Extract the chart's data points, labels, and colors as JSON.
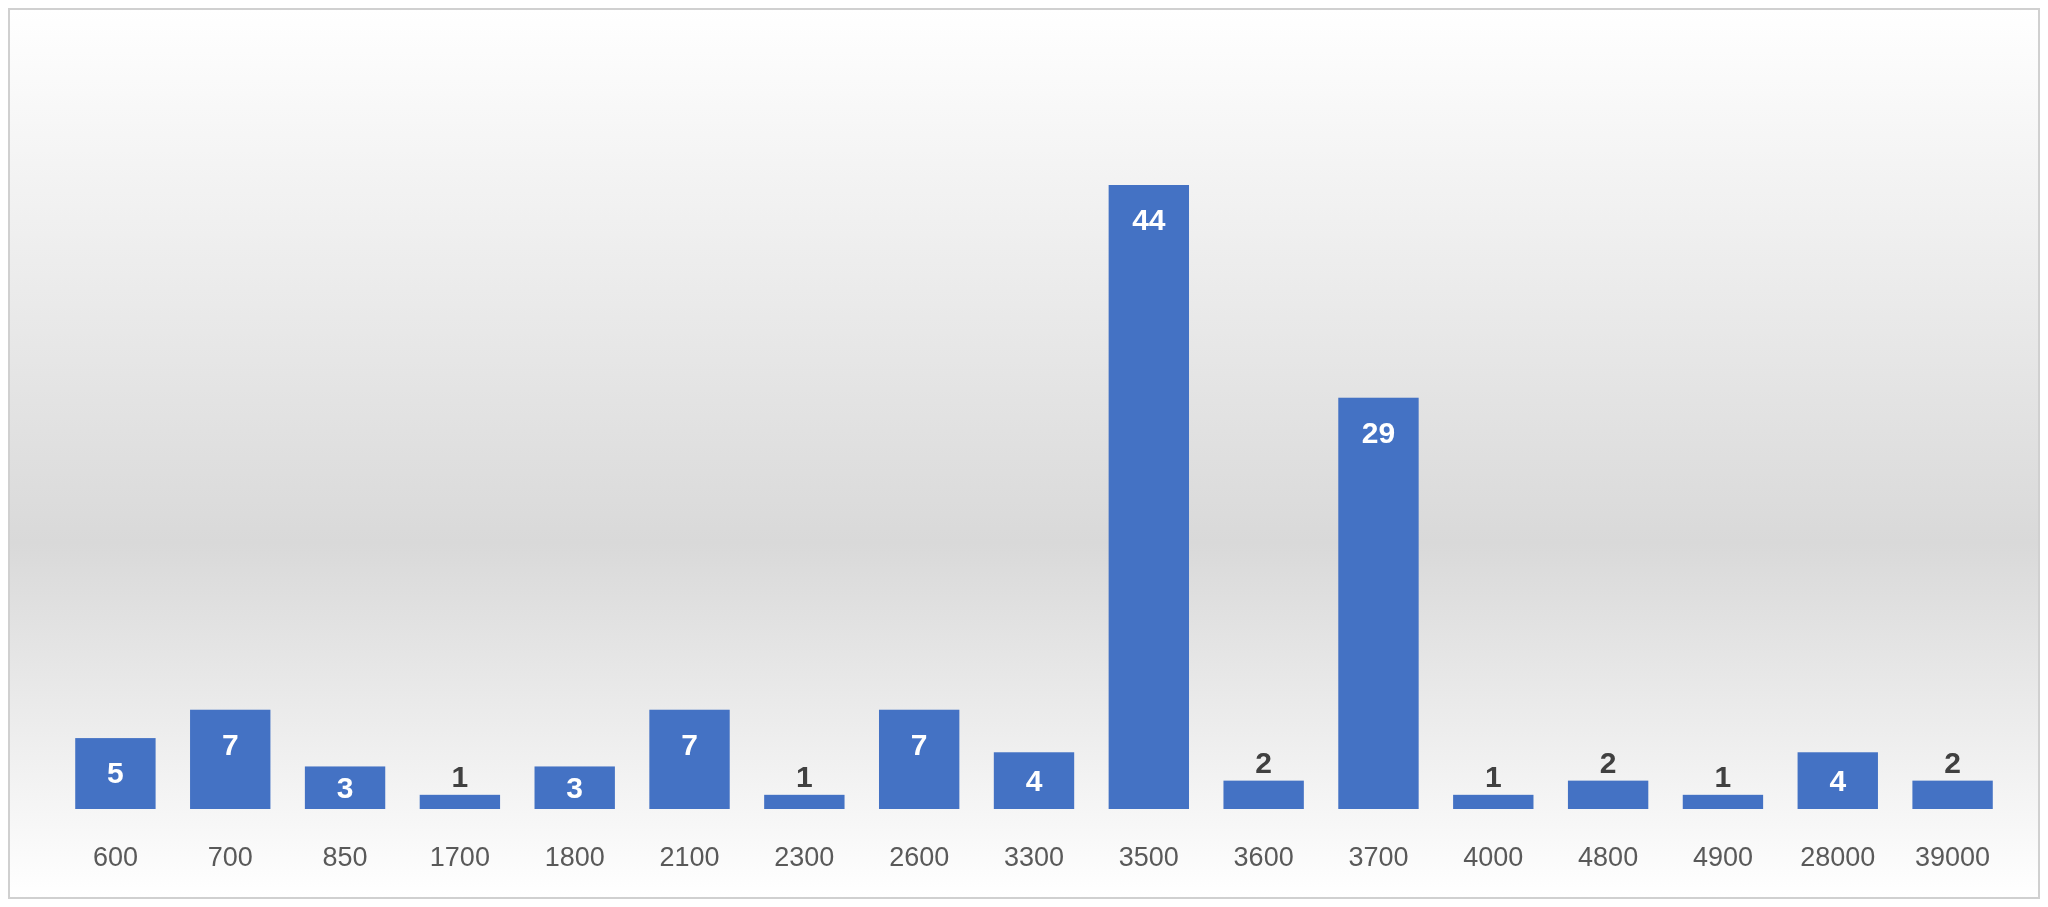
{
  "chart_data": {
    "type": "bar",
    "categories": [
      "600",
      "700",
      "850",
      "1700",
      "1800",
      "2100",
      "2300",
      "2600",
      "3300",
      "3500",
      "3600",
      "3700",
      "4000",
      "4800",
      "4900",
      "28000",
      "39000"
    ],
    "values": [
      5,
      7,
      3,
      1,
      3,
      7,
      1,
      7,
      4,
      44,
      2,
      29,
      1,
      2,
      1,
      4,
      2
    ],
    "color": "#4472c4",
    "data_labels": true
  }
}
